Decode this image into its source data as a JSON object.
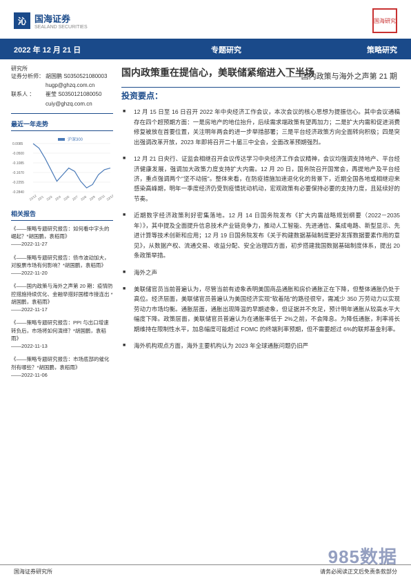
{
  "logo": {
    "icon_text": "沁",
    "cn": "国海证券",
    "en": "SEALAND SECURITIES"
  },
  "seal_text": "国海研究",
  "title_bar": {
    "date": "2022 年 12 月 21 日",
    "center": "专题研究",
    "right": "策略研究"
  },
  "analysts": {
    "org_label": "研究所",
    "rows": [
      {
        "label": "证券分析师：",
        "name": "胡国鹏",
        "code": "S0350521080003"
      },
      {
        "label": "",
        "name": "",
        "code": "hugp@ghzq.com.cn"
      },
      {
        "label": "联系人    ：",
        "name": "崔莹",
        "code": "S0350121080050"
      },
      {
        "label": "",
        "name": "",
        "code": "cuiy@ghzq.com.cn"
      }
    ]
  },
  "trend": {
    "title": "最近一年走势",
    "legend": "沪深300",
    "ylabels": [
      "0.0085",
      "-0.0500",
      "-0.1085",
      "-0.1670",
      "-0.2255",
      "-0.2840"
    ],
    "xlabels": [
      "21/12",
      "22/1",
      "22/3",
      "22/4",
      "22/5",
      "22/7",
      "22/8",
      "22/9",
      "22/11",
      "22/12"
    ],
    "line_color": "#4a7ab8",
    "grid_color": "#cccccc",
    "values": [
      0.008,
      -0.02,
      -0.08,
      -0.15,
      -0.22,
      -0.18,
      -0.14,
      -0.16,
      -0.22,
      -0.26,
      -0.24,
      -0.18,
      -0.15,
      -0.14
    ]
  },
  "related": {
    "title": "相关报告",
    "items": [
      {
        "text": "《——策略专题研究报告：如何看中字头的崛起？*胡国鹏，袁稻雨》",
        "date": "——2022-11-27"
      },
      {
        "text": "《——策略专题研究报告：债市波动加大，对股票市场有何影响？*胡国鹏，袁稻雨》",
        "date": "——2022-11-20"
      },
      {
        "text": "《——国内政策与海外之声第 20 期：疫情防控措施持续优化、金融举措好国楼市接连出 *胡国鹏，袁稻雨》",
        "date": "——2022-11-17"
      },
      {
        "text": "《——策略专题研究报告：PPI 与出口增速转负后，市场将如何演绎？*胡国鹏，袁稻雨》",
        "date": "——2022-11-13"
      },
      {
        "text": "《——策略专题研究报告：市场底部的催化剂有哪些？*胡国鹏，袁稻雨》",
        "date": "——2022-11-06"
      }
    ]
  },
  "main": {
    "title": "国内政策重在提信心，美联储紧缩进入下半场",
    "subtitle": "——国内政策与海外之声第 21 期",
    "section_heading": "投资要点：",
    "bullets": [
      "12 月 15 日至 16 日召开 2022 年中央经济工作会议，本次会议的核心思想为提振信心。其中会议通稿存在四个超预期方面：一是房地产的地位抬升，后续需求端政策有望再加力；二是扩大内需和促进消费修复被放在首要位置，关注明年两会的进一步举措部署；三是平台经济政策方向全面转向积极；四是突出强调改革开放，2023 年即将召开二十届三中全会，全面改革预期强烈。",
      "12 月 21 日央行、证监会相继召开会议传达学习中央经济工作会议精神，会议均强调支持地产、平台经济健康发展，强调加大政策力度支持扩大内需。12 月 20 日，国务院召开国常会，再提地产及平台经济，重点强调两个\"坚不动摇\"。整体来看，在防疫措施加速退化化的背景下，近期全国各地或相继迎来感染高峰期，明年一季度经济仍受到疫情扰动机动，宏观政策有必要保持必要的支持力度，且延续好的节奏。",
      "近期数字经济政策利好密集落地。12 月 14 日国务院发布《扩大内需战略规划纲要（2022－2035 年）》，其中提及全面提升信息技术产业链竞争力，推动人工智能、先进通信、集成电路、新型显示、先进计算等技术创新和应用；12 月 19 日国务院发布《关于构建数据基础制度更好发挥数据要素作用的意见》，从数据产权、流通交易、收益分配、安全治理四方面，初步搭建我国数据基础制度体系，提出 20 条政策举措。",
      "海外之声",
      "美联储官员当前普遍认为，尽管当前有迹象表明美国商品通胀和房价通胀正在下降，但整体通胀仍处于高位。经济层面，美联储官员普遍认为美国经济实现\"软着陆\"的路径很窄，需减少 350 万劳动力以实现劳动力市场均衡。通胀层面，通胀出现降温的早期迹象，但证据并不充足，预计明年通胀从较高水平大幅度下降。政策层面，美联储官员普遍认为在通胀率低于 2%之前，不会降息。为降低通胀，利率将长期维持在限制性水平，加息幅度可能超过 FOMC 的终端利率预期，但不需要超过 6%的联邦基金利率。",
      "海外机构观点方面，海外主要机构认为 2023 年全球通胀问题仍旧严"
    ]
  },
  "footer": {
    "left": "国海证券研究所",
    "right": "请务必阅读正文后免责条款部分"
  },
  "watermark": "985数据"
}
